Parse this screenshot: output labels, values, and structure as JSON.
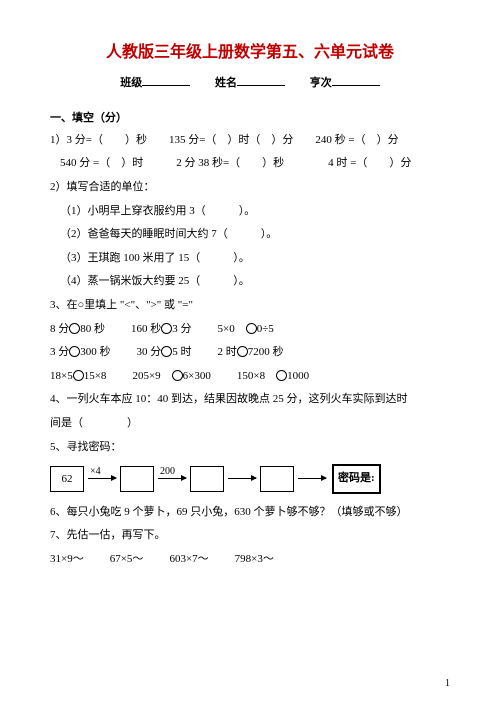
{
  "title": "人教版三年级上册数学第五、六单元试卷",
  "header": {
    "class_label": "班级",
    "name_label": "姓名",
    "order_label": "亨次"
  },
  "sec1": {
    "head": "一、填空（分）",
    "q1a": "1）3 分=（　　）秒　　135 分=（　）时（　）分　　240 秒 =（　）分",
    "q1b": "540 分 =（　）时　　　2 分 38 秒=（　　）秒　　　　4 时 =（　　）分",
    "q2": "2）填写合适的单位：",
    "q2_1": "（1）小明早上穿衣服约用 3（　　　）。",
    "q2_2": "（2）爸爸每天的睡眠时间大约 7（　　　）。",
    "q2_3": "（3）王琪跑 100 米用了 15（　　　）。",
    "q2_4": "（4）蒸一锅米饭大约要 25（　　　）。",
    "q3": "3、在○里填上 \"<\"、\">\" 或 \"=\"",
    "q3r1": {
      "a": "8 分",
      "b": "80 秒",
      "c": "160 秒",
      "d": "3 分",
      "e": "5×0",
      "f": "0÷5"
    },
    "q3r2": {
      "a": "3 分",
      "b": "300 秒",
      "c": "30 分",
      "d": "5 时",
      "e": "2 时",
      "f": "7200 秒"
    },
    "q3r3": {
      "a": "18×5",
      "b": "15×8",
      "c": "205×9",
      "d": "6×300",
      "e": "150×8",
      "f": "1000"
    },
    "q4": "4、一列火车本应 10：40 到达，结果因故晚点 25 分，这列火车实际到达时",
    "q4b": "间是（　　　　）",
    "q5": "5、寻找密码：",
    "flow": {
      "start": "62",
      "op1": "×4",
      "op2": "200",
      "pwd": "密码是:"
    },
    "q6": "6、每只小兔吃 9 个萝卜，69 只小兔，630 个萝卜够不够？（填够或不够）",
    "q7": "7、先估一估，再写下。",
    "q7row": {
      "a": "31×9～",
      "b": "67×5～",
      "c": "603×7～",
      "d": "798×3～"
    }
  },
  "page": "1"
}
